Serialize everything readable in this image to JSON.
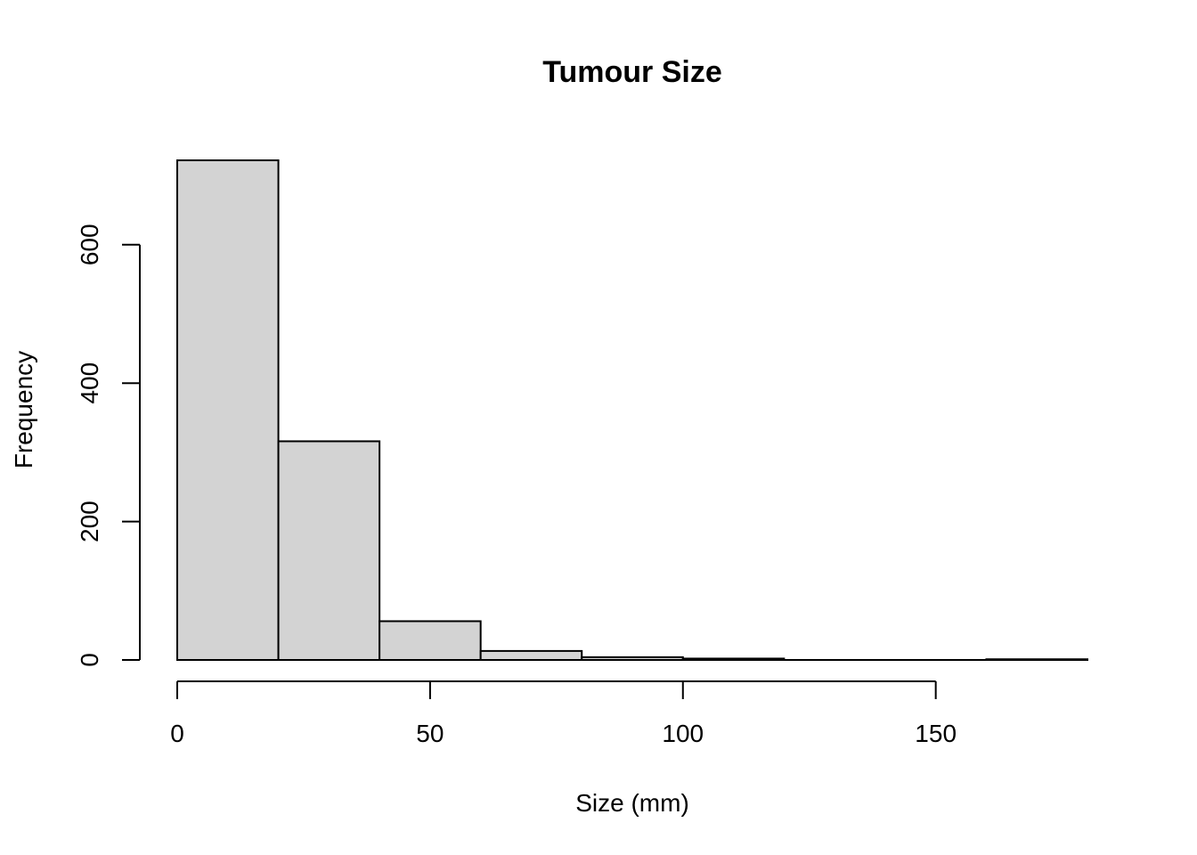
{
  "chart_data": {
    "type": "histogram",
    "title": "Tumour Size",
    "xlabel": "Size (mm)",
    "ylabel": "Frequency",
    "bins": [
      {
        "start": 0,
        "end": 20,
        "count": 722
      },
      {
        "start": 20,
        "end": 40,
        "count": 316
      },
      {
        "start": 40,
        "end": 60,
        "count": 56
      },
      {
        "start": 60,
        "end": 80,
        "count": 13
      },
      {
        "start": 80,
        "end": 100,
        "count": 4
      },
      {
        "start": 100,
        "end": 120,
        "count": 2
      },
      {
        "start": 120,
        "end": 140,
        "count": 0
      },
      {
        "start": 140,
        "end": 160,
        "count": 0
      },
      {
        "start": 160,
        "end": 180,
        "count": 1
      }
    ],
    "xlim": [
      0,
      180
    ],
    "ylim": [
      0,
      722
    ],
    "x_ticks": [
      0,
      50,
      100,
      150
    ],
    "y_ticks": [
      0,
      200,
      400,
      600
    ],
    "x_tick_labels": [
      "0",
      "50",
      "100",
      "150"
    ],
    "y_tick_labels": [
      "0",
      "200",
      "400",
      "600"
    ],
    "bar_fill": "#d3d3d3",
    "bar_stroke": "#000000",
    "grid": false,
    "legend": "none"
  }
}
